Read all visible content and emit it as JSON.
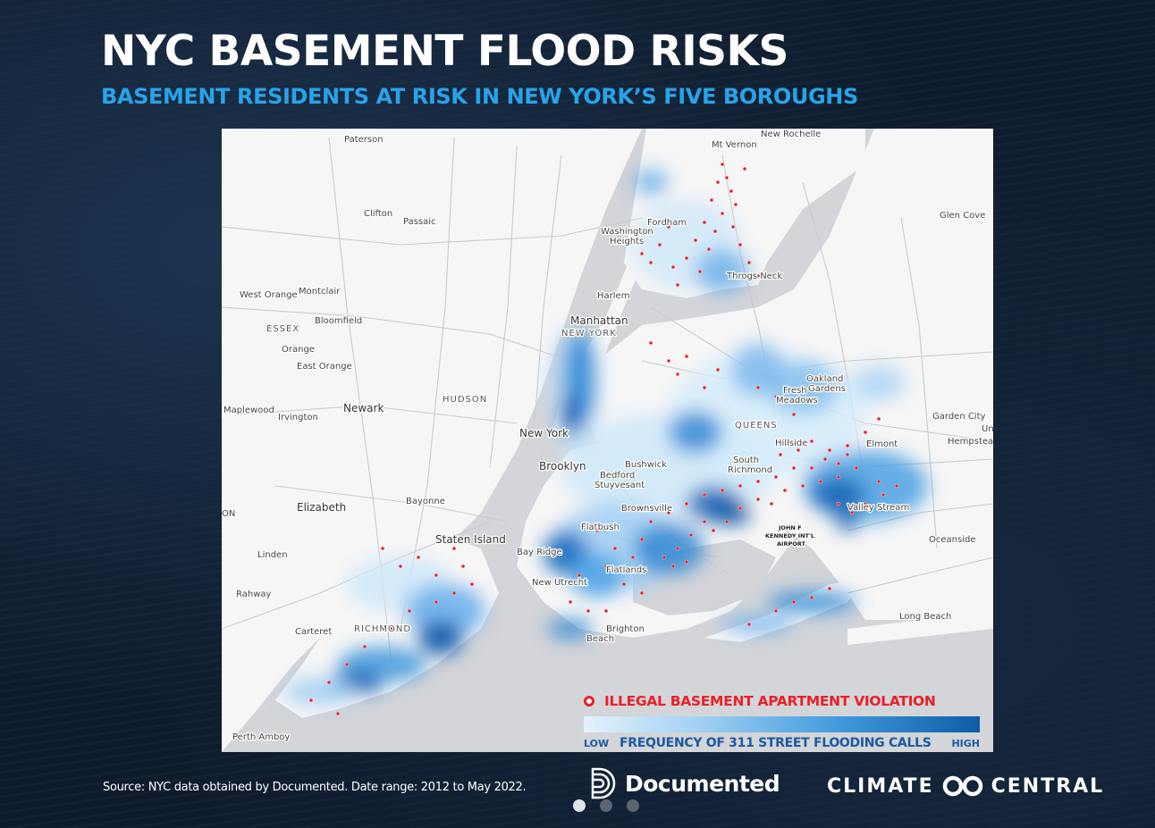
{
  "header": {
    "title": "NYC BASEMENT FLOOD RISKS",
    "subtitle": "BASEMENT RESIDENTS AT RISK IN NEW YORK’S FIVE BOROUGHS"
  },
  "map": {
    "labels": {
      "paterson": "Paterson",
      "mt_vernon": "Mt Vernon",
      "new_rochelle": "New Rochelle",
      "clifton": "Clifton",
      "passaic": "Passaic",
      "glen_cove": "Glen Cove",
      "fordham": "Fordham",
      "washington_heights_1": "Washington",
      "washington_heights_2": "Heights",
      "throgs_neck": "Throgs Neck",
      "west_orange": "West Orange",
      "montclair": "Montclair",
      "bloomfield": "Bloomfield",
      "harlem": "Harlem",
      "essex": "ESSEX",
      "orange": "Orange",
      "east_orange": "East Orange",
      "manhattan": "Manhattan",
      "new_york_county": "NEW YORK",
      "oakland_gardens_1": "Oakland",
      "oakland_gardens_2": "Gardens",
      "fresh_meadows_1": "Fresh",
      "fresh_meadows_2": "Meadows",
      "hudson": "HUDSON",
      "maplewood": "Maplewood",
      "irvington": "Irvington",
      "newark": "Newark",
      "garden_city": "Garden City",
      "queens": "QUEENS",
      "hempstead": "Hempstead",
      "new_york": "New York",
      "hillside": "Hillside",
      "elmont": "Elmont",
      "brooklyn": "Brooklyn",
      "bushwick": "Bushwick",
      "south_richmond_1": "South",
      "south_richmond_2": "Richmond",
      "bedford_stuyvesant_1": "Bedford",
      "bedford_stuyvesant_2": "Stuyvesant",
      "bayonne": "Bayonne",
      "elizabeth": "Elizabeth",
      "brownsville": "Brownsville",
      "valley_stream": "Valley Stream",
      "flatbush": "Flatbush",
      "jfk_1": "JOHN F",
      "jfk_2": "KENNEDY INT'L",
      "jfk_3": "AIRPORT",
      "staten_island": "Staten Island",
      "oceanside": "Oceanside",
      "linden": "Linden",
      "bay_ridge": "Bay Ridge",
      "flatlands": "Flatlands",
      "new_utrecht": "New Utrecht",
      "rahway": "Rahway",
      "long_beach": "Long Beach",
      "carteret": "Carteret",
      "richmond": "RICHMOND",
      "brighton_beach_1": "Brighton",
      "brighton_beach_2": "Beach",
      "perth_amboy": "Perth Amboy",
      "edge_on": "ON",
      "edge_un": "Un"
    },
    "legend": {
      "violation_label": "ILLEGAL BASEMENT APARTMENT VIOLATION",
      "violation_color": "#e8202a",
      "flooding_label": "FREQUENCY OF 311 STREET FLOODING CALLS",
      "low_label": "LOW",
      "high_label": "HIGH",
      "gradient_low_color": "#e4f2fb",
      "gradient_high_color": "#0d5da7"
    }
  },
  "footer": {
    "source": "Source: NYC data obtained by Documented. Date range: 2012 to May 2022.",
    "documented_logo": "Documented",
    "climate_central_left": "CLIMATE",
    "climate_central_right": "CENTRAL",
    "climate_central_icon": "infinity-loop-icon",
    "documented_icon": "concentric-d-icon"
  },
  "carousel": {
    "slides": 3,
    "active": 1
  }
}
